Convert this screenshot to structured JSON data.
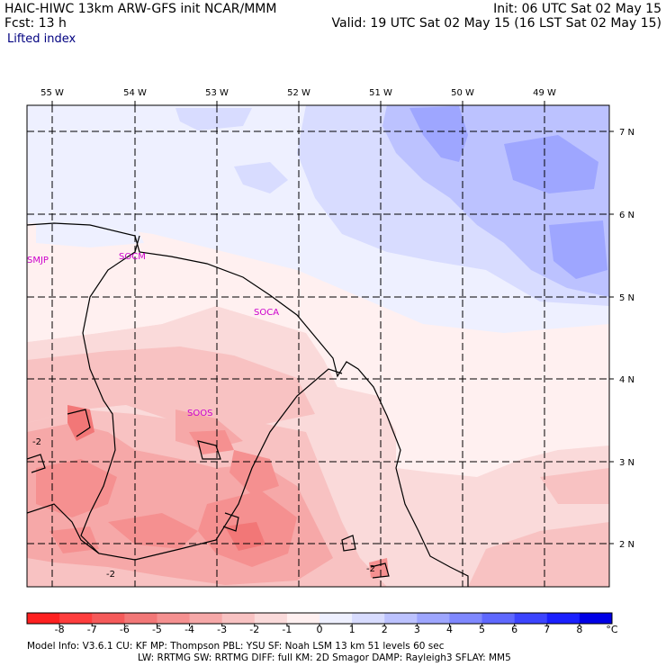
{
  "header": {
    "left_line1": "HAIC-HIWC 13km ARW-GFS init     NCAR/MMM",
    "left_line2": "Fcst:     13 h",
    "subtitle": "Lifted index",
    "right_line1": "Init: 06 UTC Sat 02 May 15",
    "right_line2": "Valid: 19 UTC Sat 02 May 15 (16 LST Sat 02 May 15)"
  },
  "map": {
    "lon_labels": [
      "55 W",
      "54 W",
      "53 W",
      "52 W",
      "51 W",
      "50 W",
      "49 W"
    ],
    "lat_labels": [
      "7 N",
      "6 N",
      "5 N",
      "4 N",
      "3 N",
      "2 N"
    ],
    "stations": [
      "SMJP",
      "SOCM",
      "SOCA",
      "SOOS"
    ],
    "contour_labels": [
      "-2",
      "-2",
      "-2"
    ]
  },
  "colorbar": {
    "labels": [
      "-8",
      "-7",
      "-6",
      "-5",
      "-4",
      "-3",
      "-2",
      "-1",
      "0",
      "1",
      "2",
      "3",
      "4",
      "5",
      "6",
      "7",
      "8"
    ],
    "unit": "°C",
    "colors": [
      "#ff2020",
      "#ff3d3d",
      "#f55a5a",
      "#f27777",
      "#f59090",
      "#f6a8a8",
      "#f8c2c2",
      "#fadada",
      "#fff0f0",
      "#eef0ff",
      "#d8dcff",
      "#bcc2ff",
      "#9ea6ff",
      "#7f88ff",
      "#5f68ff",
      "#3c44ff",
      "#1a20ff",
      "#0000e6"
    ]
  },
  "footer": {
    "line1": "Model Info: V3.6.1    CU: KF      MP: Thompson     PBL: YSU        SF: Noah LSM     13 km    51 levels   60 sec",
    "line2": "LW: RRTMG    SW: RRTMG   DIFF: full    KM: 2D Smagor DAMP: Rayleigh3  SFLAY: MM5"
  }
}
